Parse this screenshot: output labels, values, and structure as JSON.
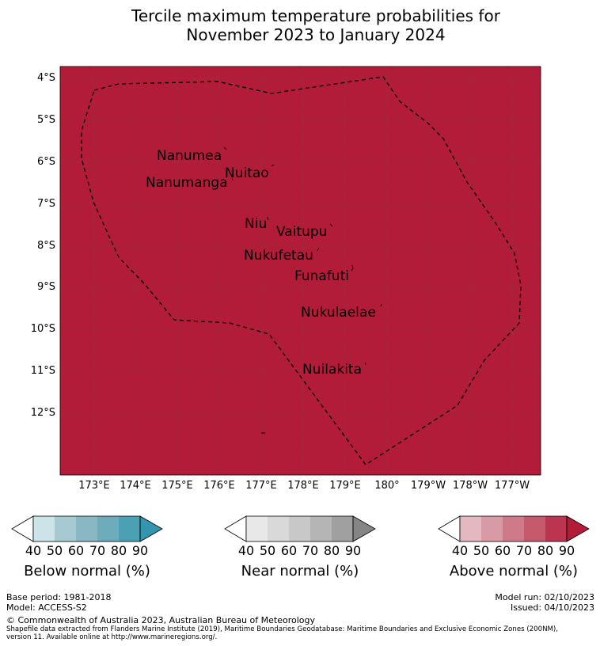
{
  "title_line1": "Tercile maximum temperature probabilities for",
  "title_line2": "November 2023 to January 2024",
  "map": {
    "fill_color": "#b31c38",
    "lat_labels": [
      "4°S",
      "5°S",
      "6°S",
      "7°S",
      "8°S",
      "9°S",
      "10°S",
      "11°S",
      "12°S"
    ],
    "lon_labels": [
      "173°E",
      "174°E",
      "175°E",
      "176°E",
      "177°E",
      "178°E",
      "179°E",
      "180°",
      "179°W",
      "178°W",
      "177°W"
    ],
    "islands": [
      {
        "name": "Nanumea"
      },
      {
        "name": "Nuitao"
      },
      {
        "name": "Nanumanga"
      },
      {
        "name": "Niu"
      },
      {
        "name": "Vaitupu"
      },
      {
        "name": "Nukufetau"
      },
      {
        "name": "Funafuti"
      },
      {
        "name": "Nukulaelae"
      },
      {
        "name": "Nuilakita"
      }
    ]
  },
  "legends": [
    {
      "title": "Below normal (%)",
      "ticks": [
        "40",
        "50",
        "60",
        "70",
        "80",
        "90"
      ],
      "colors": [
        "#ffffff",
        "#cce3e8",
        "#a7c9d1",
        "#89b7c3",
        "#6eabbb",
        "#4ba0b4",
        "#3495b0"
      ]
    },
    {
      "title": "Near normal (%)",
      "ticks": [
        "40",
        "50",
        "60",
        "70",
        "80",
        "90"
      ],
      "colors": [
        "#ffffff",
        "#e8e8e8",
        "#d9d9d9",
        "#c8c8c8",
        "#b5b5b5",
        "#a0a0a0",
        "#858585"
      ]
    },
    {
      "title": "Above normal (%)",
      "ticks": [
        "40",
        "50",
        "60",
        "70",
        "80",
        "90"
      ],
      "colors": [
        "#ffffff",
        "#e4b8c0",
        "#d89aa5",
        "#cf7a88",
        "#c55a6c",
        "#bb3550",
        "#b31c38"
      ]
    }
  ],
  "footer": {
    "base_period": "Base period: 1981-2018",
    "model": "Model: ACCESS-S2",
    "model_run": "Model run: 02/10/2023",
    "issued": "Issued: 04/10/2023",
    "copyright": "© Commonwealth of Australia 2023, Australian Bureau of Meteorology",
    "shapefile_line1": "Shapefile data extracted from Flanders Marine Institute (2019), Maritime Boundaries Geodatabase: Maritime Boundaries and Exclusive Economic Zones (200NM),",
    "shapefile_line2": "version 11. Available online at http://www.marineregions.org/."
  }
}
